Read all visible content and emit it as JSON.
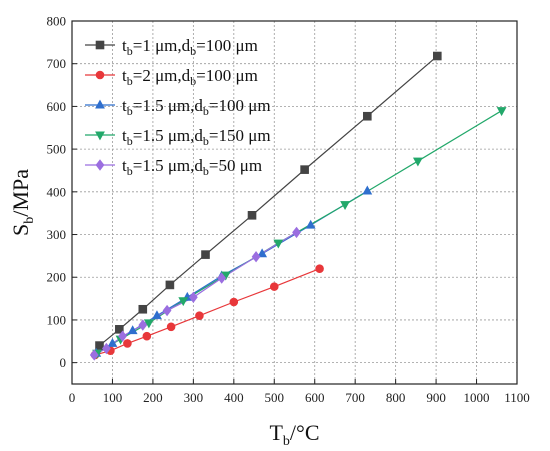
{
  "chart_data": {
    "type": "line",
    "title": "",
    "xlabel": {
      "main": "T",
      "sub": "b",
      "rest": "/°C"
    },
    "ylabel": {
      "main": "S",
      "sub": "b",
      "rest": "/MPa"
    },
    "xlim": [
      0,
      1100
    ],
    "ylim": [
      -50,
      800
    ],
    "xticks": [
      0,
      100,
      200,
      300,
      400,
      500,
      600,
      700,
      800,
      900,
      1000,
      1100
    ],
    "yticks": [
      0,
      100,
      200,
      300,
      400,
      500,
      600,
      700,
      800
    ],
    "grid": true,
    "legend_position": "top-left",
    "series": [
      {
        "name": "tb=1 μm,db=100 μm",
        "label_parts": [
          "t",
          "b",
          "=1 μm,d",
          "b",
          "=100 μm"
        ],
        "color": "#444444",
        "marker": "square",
        "x": [
          68,
          117,
          175,
          242,
          330,
          445,
          575,
          730,
          903
        ],
        "y": [
          40,
          78,
          125,
          182,
          253,
          345,
          452,
          577,
          718
        ]
      },
      {
        "name": "tb=2 μm,db=100 μm",
        "label_parts": [
          "t",
          "b",
          "=2 μm,d",
          "b",
          "=100 μm"
        ],
        "color": "#e8373a",
        "marker": "circle",
        "x": [
          57,
          95,
          137,
          185,
          245,
          315,
          400,
          500,
          612
        ],
        "y": [
          18,
          28,
          45,
          62,
          84,
          110,
          142,
          178,
          220
        ]
      },
      {
        "name": "tb=1.5 μm,db=100 μm",
        "label_parts": [
          "t",
          "b",
          "=1.5 μm,d",
          "b",
          "=100 μm"
        ],
        "color": "#2f6fce",
        "marker": "triangle-up",
        "x": [
          60,
          100,
          150,
          210,
          285,
          370,
          470,
          590,
          730
        ],
        "y": [
          22,
          45,
          75,
          110,
          153,
          203,
          255,
          322,
          402
        ]
      },
      {
        "name": "tb=1.5 μm,db=150 μm",
        "label_parts": [
          "t",
          "b",
          "=1.5 μm,d",
          "b",
          "=150 μm"
        ],
        "color": "#22a86a",
        "marker": "triangle-down",
        "x": [
          62,
          120,
          190,
          275,
          380,
          510,
          675,
          855,
          1062
        ],
        "y": [
          22,
          55,
          93,
          145,
          205,
          280,
          370,
          472,
          590
        ]
      },
      {
        "name": "tb=1.5 μm,db=50 μm",
        "label_parts": [
          "t",
          "b",
          "=1.5 μm,d",
          "b",
          "=50 μm"
        ],
        "color": "#9b6ee0",
        "marker": "diamond",
        "x": [
          55,
          85,
          125,
          175,
          235,
          300,
          370,
          455,
          555
        ],
        "y": [
          18,
          33,
          62,
          88,
          122,
          153,
          198,
          248,
          305
        ]
      }
    ]
  }
}
